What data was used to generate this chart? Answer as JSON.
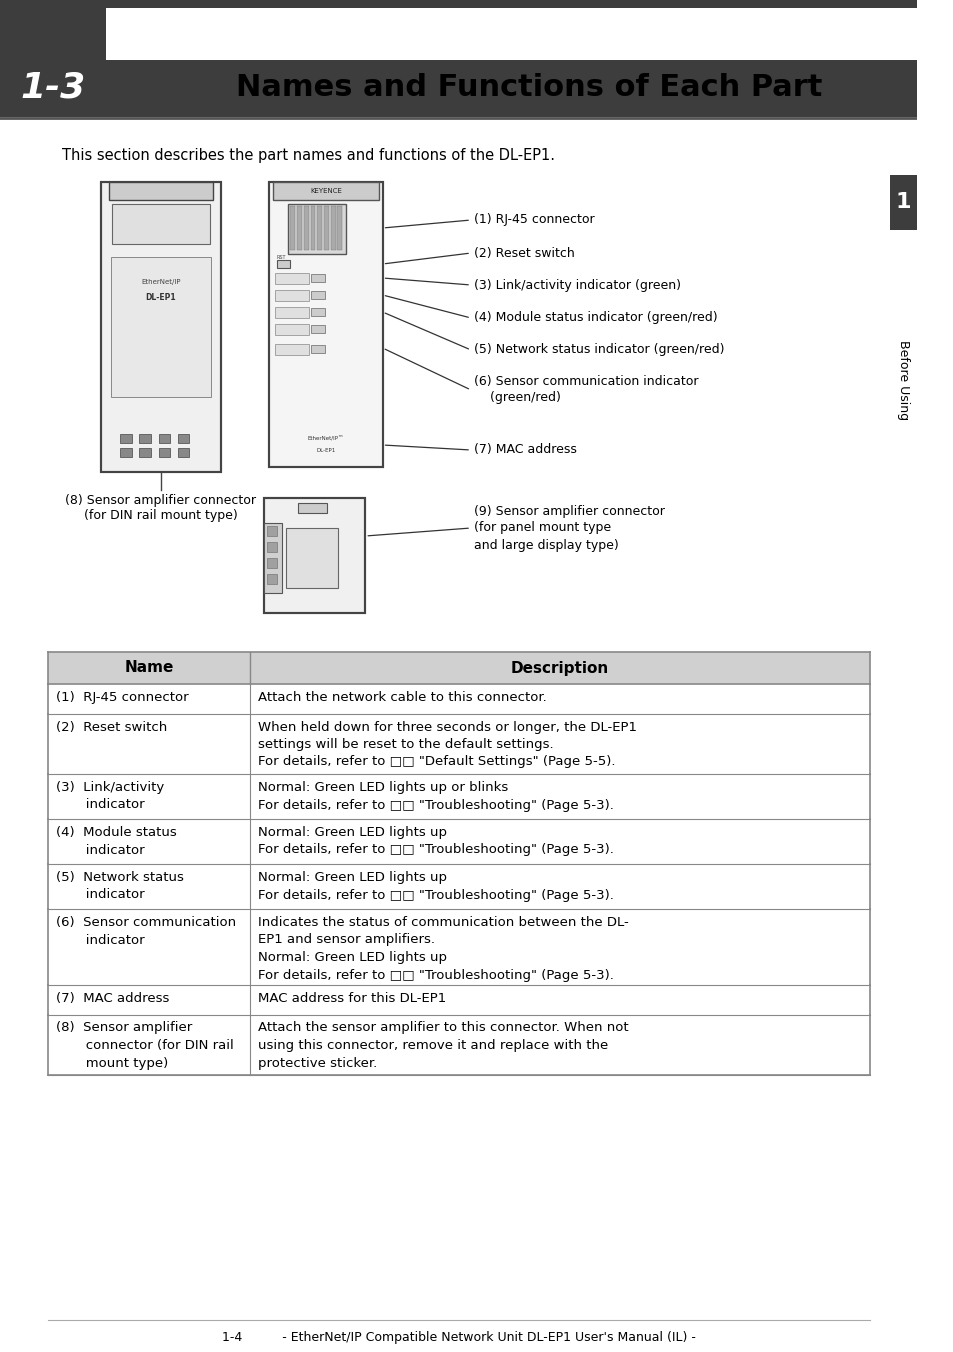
{
  "page_bg": "#ffffff",
  "header_bg": "#3d3d3d",
  "header_text": "1-3",
  "header_title": "Names and Functions of Each Part",
  "side_tab_bg": "#3d3d3d",
  "side_tab_text": "1",
  "side_label": "Before Using",
  "intro_text": "This section describes the part names and functions of the DL-EP1.",
  "table_header_bg": "#d0d0d0",
  "table_col1_header": "Name",
  "table_col2_header": "Description",
  "table_border_color": "#888888",
  "table_rows": [
    {
      "name": "(1)  RJ-45 connector",
      "desc": "Attach the network cable to this connector."
    },
    {
      "name": "(2)  Reset switch",
      "desc": "When held down for three seconds or longer, the DL-EP1\nsettings will be reset to the default settings.\nFor details, refer to □□ \"Default Settings\" (Page 5-5)."
    },
    {
      "name": "(3)  Link/activity\n       indicator",
      "desc": "Normal: Green LED lights up or blinks\nFor details, refer to □□ \"Troubleshooting\" (Page 5-3)."
    },
    {
      "name": "(4)  Module status\n       indicator",
      "desc": "Normal: Green LED lights up\nFor details, refer to □□ \"Troubleshooting\" (Page 5-3)."
    },
    {
      "name": "(5)  Network status\n       indicator",
      "desc": "Normal: Green LED lights up\nFor details, refer to □□ \"Troubleshooting\" (Page 5-3)."
    },
    {
      "name": "(6)  Sensor communication\n       indicator",
      "desc": "Indicates the status of communication between the DL-\nEP1 and sensor amplifiers.\nNormal: Green LED lights up\nFor details, refer to □□ \"Troubleshooting\" (Page 5-3)."
    },
    {
      "name": "(7)  MAC address",
      "desc": "MAC address for this DL-EP1"
    },
    {
      "name": "(8)  Sensor amplifier\n       connector (for DIN rail\n       mount type)",
      "desc": "Attach the sensor amplifier to this connector. When not\nusing this connector, remove it and replace with the\nprotective sticker."
    }
  ],
  "footer_text": "1-4          - EtherNet/IP Compatible Network Unit DL-EP1 User's Manual (IL) -",
  "diagram_labels": [
    "(1) RJ-45 connector",
    "(2) Reset switch",
    "(3) Link/activity indicator (green)",
    "(4) Module status indicator (green/red)",
    "(5) Network status indicator (green/red)",
    "(6) Sensor communication indicator\n    (green/red)",
    "(7) MAC address"
  ],
  "diagram_label8": "(8) Sensor amplifier connector\n(for DIN rail mount type)",
  "diagram_label9": "(9) Sensor amplifier connector\n(for panel mount type\nand large display type)"
}
